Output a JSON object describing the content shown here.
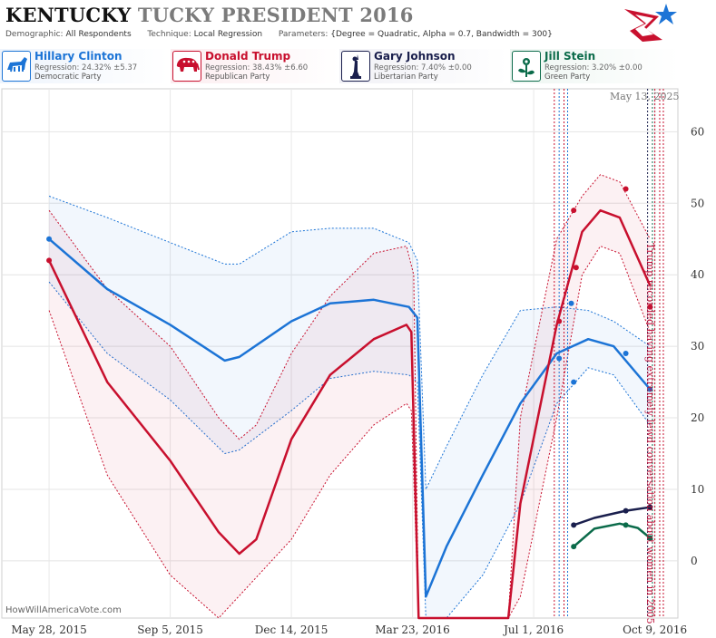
{
  "title": {
    "word1": "KENTUCKY",
    "word2": "TUCKY PRESIDENT 2016"
  },
  "meta": {
    "demographic_key": "Demographic:",
    "demographic": "All Respondents",
    "technique_key": "Technique:",
    "technique": "Local Regression",
    "parameters_key": "Parameters:",
    "parameters": "{Degree = Quadratic, Alpha = 0.7, Bandwidth = 300}"
  },
  "candidates": [
    {
      "name": "Hillary Clinton",
      "regression": "Regression: 24.32% ±5.37",
      "party": "Democratic Party",
      "color": "#1c74d6",
      "bg": "#eef4fc",
      "icon": "donkey-icon"
    },
    {
      "name": "Donald Trump",
      "regression": "Regression: 38.43% ±6.60",
      "party": "Republican Party",
      "color": "#c8102e",
      "bg": "#fcedf0",
      "icon": "elephant-icon"
    },
    {
      "name": "Gary Johnson",
      "regression": "Regression: 7.40% ±0.00",
      "party": "Libertarian Party",
      "color": "#1a1f4d",
      "bg": "#f1f1f6",
      "icon": "liberty-icon"
    },
    {
      "name": "Jill Stein",
      "regression": "Regression: 3.20% ±0.00",
      "party": "Green Party",
      "color": "#0b6b4a",
      "bg": "#eef6f2",
      "icon": "flower-icon"
    }
  ],
  "date_label": "May 13, 2025",
  "credit": "HowWillAmericaVote.com",
  "annotation": "Trump recorded having extremely lewd conversation about women in 2005",
  "chart_data": {
    "type": "line",
    "x_ticks": [
      "May 28, 2015",
      "Sep 5, 2015",
      "Dec 14, 2015",
      "Mar 23, 2016",
      "Jul 1, 2016",
      "Oct 9, 2016"
    ],
    "x_tick_dates": [
      "2015-05-28",
      "2015-09-05",
      "2015-12-14",
      "2016-03-23",
      "2016-07-01",
      "2016-10-09"
    ],
    "xlim": [
      "2015-04-19",
      "2016-10-28"
    ],
    "ylim": [
      -8,
      66
    ],
    "y_ticks": [
      0,
      10,
      20,
      30,
      40,
      50,
      60
    ],
    "grid": true,
    "series": [
      {
        "name": "Hillary Clinton",
        "color": "#1c74d6",
        "line": [
          [
            "2015-05-28",
            45
          ],
          [
            "2015-07-15",
            38
          ],
          [
            "2015-09-05",
            33
          ],
          [
            "2015-10-20",
            28
          ],
          [
            "2015-11-01",
            28.5
          ],
          [
            "2015-12-14",
            33.5
          ],
          [
            "2016-01-15",
            36
          ],
          [
            "2016-02-20",
            36.5
          ],
          [
            "2016-03-20",
            35.5
          ],
          [
            "2016-03-27",
            34
          ],
          [
            "2016-04-03",
            -5
          ],
          [
            "2016-04-20",
            2
          ],
          [
            "2016-05-20",
            12
          ],
          [
            "2016-06-20",
            22
          ],
          [
            "2016-07-20",
            29
          ],
          [
            "2016-08-15",
            31
          ],
          [
            "2016-09-05",
            30
          ],
          [
            "2016-10-05",
            24
          ]
        ],
        "upper": [
          [
            "2015-05-28",
            51
          ],
          [
            "2015-07-15",
            48
          ],
          [
            "2015-09-05",
            44.5
          ],
          [
            "2015-10-20",
            41.5
          ],
          [
            "2015-11-01",
            41.5
          ],
          [
            "2015-12-14",
            46
          ],
          [
            "2016-01-15",
            46.5
          ],
          [
            "2016-02-20",
            46.5
          ],
          [
            "2016-03-20",
            44.5
          ],
          [
            "2016-03-27",
            42
          ],
          [
            "2016-04-03",
            10
          ],
          [
            "2016-04-20",
            16
          ],
          [
            "2016-05-20",
            26
          ],
          [
            "2016-06-20",
            35
          ],
          [
            "2016-07-20",
            35.5
          ],
          [
            "2016-08-15",
            35
          ],
          [
            "2016-09-05",
            33.5
          ],
          [
            "2016-10-05",
            30
          ]
        ],
        "lower": [
          [
            "2015-05-28",
            39
          ],
          [
            "2015-07-15",
            29
          ],
          [
            "2015-09-05",
            22.5
          ],
          [
            "2015-10-20",
            15
          ],
          [
            "2015-11-01",
            15.5
          ],
          [
            "2015-12-14",
            21
          ],
          [
            "2016-01-15",
            25.5
          ],
          [
            "2016-02-20",
            26.5
          ],
          [
            "2016-03-20",
            26
          ],
          [
            "2016-03-27",
            25
          ],
          [
            "2016-04-03",
            -8
          ],
          [
            "2016-04-20",
            -8
          ],
          [
            "2016-05-20",
            -2
          ],
          [
            "2016-06-20",
            8
          ],
          [
            "2016-07-20",
            22
          ],
          [
            "2016-08-15",
            27
          ],
          [
            "2016-09-05",
            26
          ],
          [
            "2016-10-05",
            19
          ]
        ],
        "points": [
          [
            "2015-05-28",
            45
          ],
          [
            "2016-07-22",
            28.3
          ],
          [
            "2016-08-01",
            36
          ],
          [
            "2016-08-03",
            25
          ],
          [
            "2016-09-15",
            29
          ],
          [
            "2016-10-05",
            24
          ]
        ]
      },
      {
        "name": "Donald Trump",
        "color": "#c8102e",
        "line": [
          [
            "2015-05-28",
            42
          ],
          [
            "2015-07-15",
            25
          ],
          [
            "2015-09-05",
            14
          ],
          [
            "2015-10-15",
            4
          ],
          [
            "2015-11-01",
            1
          ],
          [
            "2015-11-15",
            3
          ],
          [
            "2015-12-14",
            17
          ],
          [
            "2016-01-15",
            26
          ],
          [
            "2016-02-20",
            31
          ],
          [
            "2016-03-18",
            33
          ],
          [
            "2016-03-22",
            32
          ],
          [
            "2016-03-28",
            -8
          ],
          [
            "2016-06-10",
            -8
          ],
          [
            "2016-06-20",
            8
          ],
          [
            "2016-07-20",
            33
          ],
          [
            "2016-08-10",
            46
          ],
          [
            "2016-08-25",
            49
          ],
          [
            "2016-09-10",
            48
          ],
          [
            "2016-10-05",
            38.5
          ]
        ],
        "upper": [
          [
            "2015-05-28",
            49
          ],
          [
            "2015-07-15",
            38
          ],
          [
            "2015-09-05",
            30
          ],
          [
            "2015-10-15",
            20
          ],
          [
            "2015-11-01",
            17
          ],
          [
            "2015-11-15",
            19
          ],
          [
            "2015-12-14",
            29
          ],
          [
            "2016-01-15",
            37
          ],
          [
            "2016-02-20",
            43
          ],
          [
            "2016-03-18",
            44
          ],
          [
            "2016-03-24",
            40
          ],
          [
            "2016-03-28",
            -8
          ],
          [
            "2016-06-10",
            -8
          ],
          [
            "2016-06-20",
            20
          ],
          [
            "2016-07-20",
            45
          ],
          [
            "2016-08-10",
            51
          ],
          [
            "2016-08-25",
            54
          ],
          [
            "2016-09-10",
            53
          ],
          [
            "2016-10-05",
            45
          ]
        ],
        "lower": [
          [
            "2015-05-28",
            35
          ],
          [
            "2015-07-15",
            12
          ],
          [
            "2015-09-05",
            -2
          ],
          [
            "2015-10-15",
            -8
          ],
          [
            "2015-12-14",
            3
          ],
          [
            "2016-01-15",
            12
          ],
          [
            "2016-02-20",
            19
          ],
          [
            "2016-03-18",
            22
          ],
          [
            "2016-03-22",
            21
          ],
          [
            "2016-03-28",
            -8
          ],
          [
            "2016-06-10",
            -8
          ],
          [
            "2016-06-20",
            -5
          ],
          [
            "2016-07-20",
            20
          ],
          [
            "2016-08-10",
            40
          ],
          [
            "2016-08-25",
            44
          ],
          [
            "2016-09-10",
            43
          ],
          [
            "2016-10-05",
            32
          ]
        ],
        "points": [
          [
            "2015-05-28",
            42
          ],
          [
            "2016-07-22",
            33.5
          ],
          [
            "2016-08-03",
            49
          ],
          [
            "2016-08-05",
            41
          ],
          [
            "2016-09-15",
            52
          ],
          [
            "2016-10-05",
            35.5
          ]
        ]
      },
      {
        "name": "Gary Johnson",
        "color": "#1a1f4d",
        "line": [
          [
            "2016-08-03",
            5
          ],
          [
            "2016-08-20",
            6
          ],
          [
            "2016-09-15",
            7
          ],
          [
            "2016-10-05",
            7.5
          ]
        ],
        "points": [
          [
            "2016-08-03",
            5
          ],
          [
            "2016-09-15",
            7
          ],
          [
            "2016-10-05",
            7.5
          ]
        ]
      },
      {
        "name": "Jill Stein",
        "color": "#0b6b4a",
        "line": [
          [
            "2016-08-03",
            2
          ],
          [
            "2016-08-20",
            4.5
          ],
          [
            "2016-09-10",
            5.2
          ],
          [
            "2016-09-25",
            4.6
          ],
          [
            "2016-10-05",
            3.2
          ]
        ],
        "points": [
          [
            "2016-08-03",
            2
          ],
          [
            "2016-09-15",
            5
          ],
          [
            "2016-10-05",
            3.2
          ]
        ]
      }
    ],
    "events": [
      {
        "date": "2016-07-18",
        "color": "#c8102e"
      },
      {
        "date": "2016-07-22",
        "color": "#1c74d6"
      },
      {
        "date": "2016-07-26",
        "color": "#c8102e"
      },
      {
        "date": "2016-07-29",
        "color": "#1c74d6"
      },
      {
        "date": "2016-10-03",
        "color": "#1a1f4d"
      },
      {
        "date": "2016-10-07",
        "color": "#0b6b4a"
      },
      {
        "date": "2016-10-09",
        "color": "#c8102e"
      },
      {
        "date": "2016-10-13",
        "color": "#c8102e"
      },
      {
        "date": "2016-10-16",
        "color": "#c8102e"
      }
    ]
  }
}
